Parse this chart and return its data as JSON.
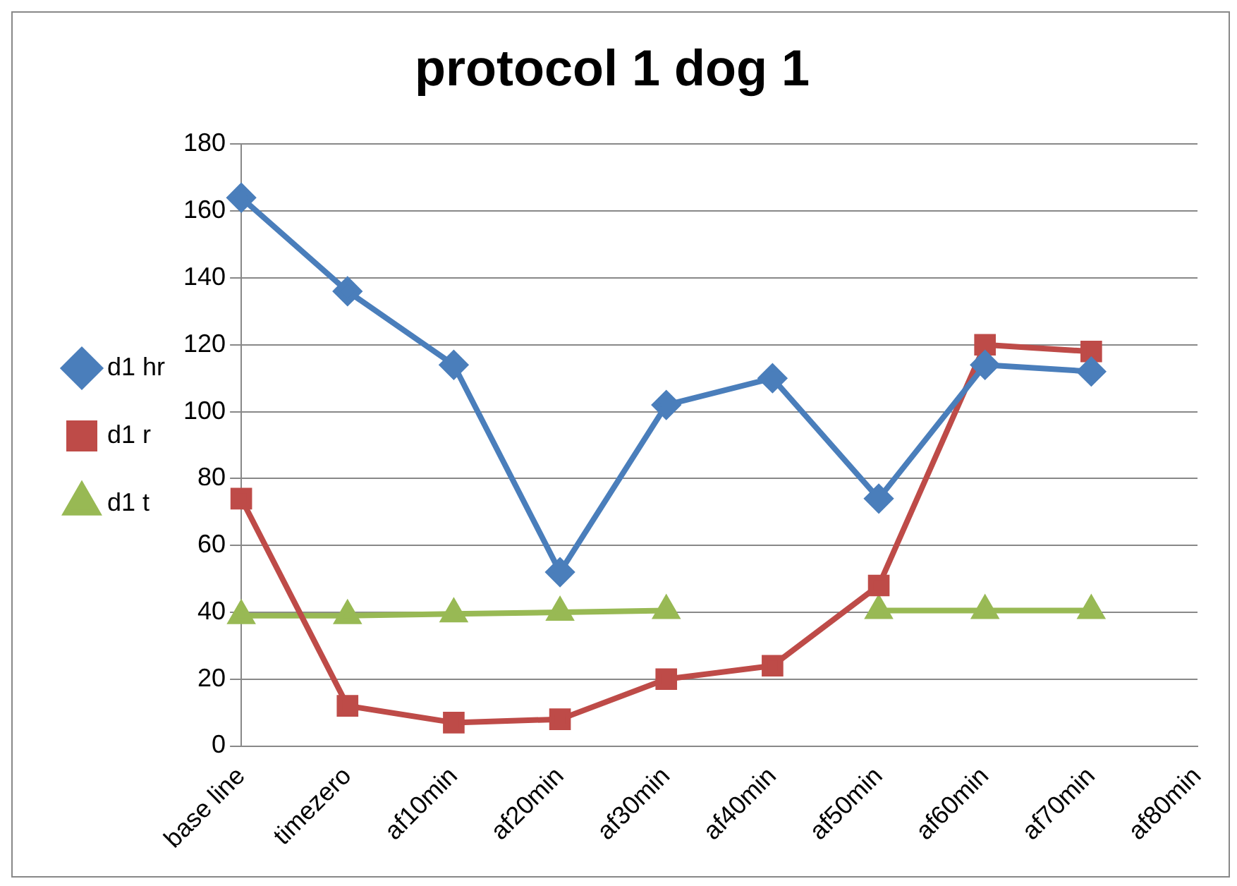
{
  "chart_data": {
    "type": "line",
    "title": "protocol 1 dog 1",
    "categories": [
      "base line",
      "timezero",
      "af10min",
      "af20min",
      "af30min",
      "af40min",
      "af50min",
      "af60min",
      "af70min",
      "af80min"
    ],
    "series": [
      {
        "name": "d1 hr",
        "color": "#4a7ebb",
        "marker": "diamond",
        "values": [
          164,
          136,
          114,
          52,
          102,
          110,
          74,
          114,
          112,
          null
        ]
      },
      {
        "name": "d1 r",
        "color": "#be4b48",
        "marker": "square",
        "values": [
          74,
          12,
          7,
          8,
          20,
          24,
          48,
          120,
          118,
          null
        ]
      },
      {
        "name": "d1 t",
        "color": "#98b954",
        "marker": "triangle",
        "values": [
          39,
          39,
          39.5,
          40,
          40.5,
          null,
          40.5,
          40.5,
          40.5,
          null
        ]
      }
    ],
    "ylim": [
      0,
      180
    ],
    "yticks": [
      0,
      20,
      40,
      60,
      80,
      100,
      120,
      140,
      160,
      180
    ],
    "grid": "y",
    "legend": "left",
    "line_style": "solid"
  }
}
